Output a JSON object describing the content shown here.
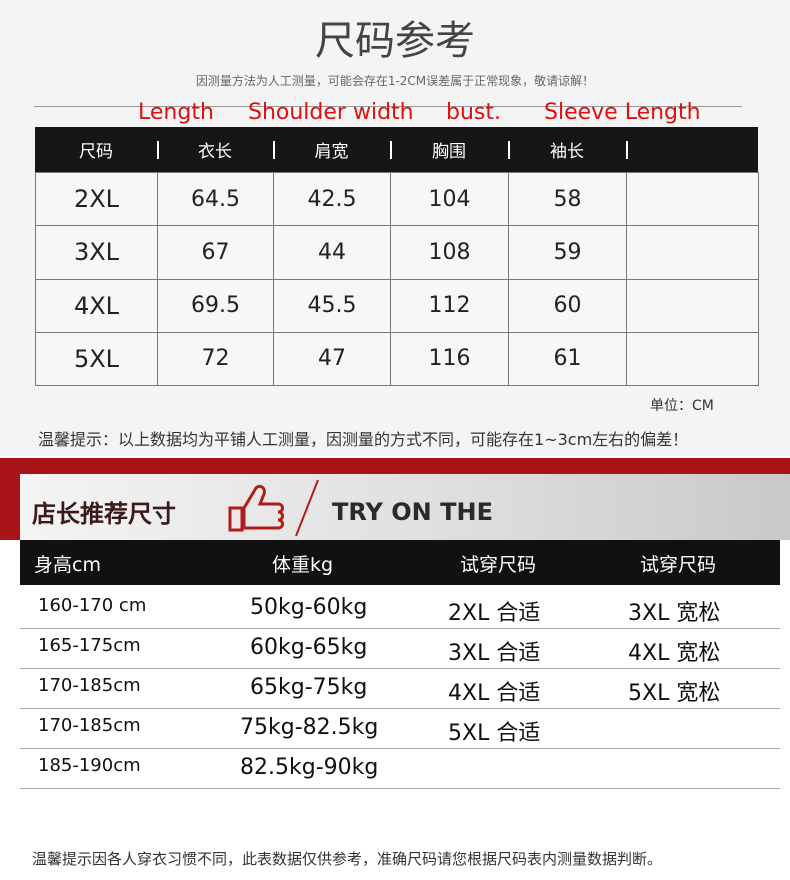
{
  "header": {
    "title": "尺码参考",
    "subtitle": "因测量方法为人工测量，可能会存在1-2CM误差属于正常现象，敬请谅解！"
  },
  "labels": [
    "Length",
    "Shoulder width",
    "bust.",
    "Sleeve Length"
  ],
  "size_table": {
    "columns": [
      "尺码",
      "衣长",
      "肩宽",
      "胸围",
      "袖长"
    ],
    "rows": [
      [
        "2XL",
        "64.5",
        "42.5",
        "104",
        "58"
      ],
      [
        "3XL",
        "67",
        "44",
        "108",
        "59"
      ],
      [
        "4XL",
        "69.5",
        "45.5",
        "112",
        "60"
      ],
      [
        "5XL",
        "72",
        "47",
        "116",
        "61"
      ]
    ],
    "unit": "单位：CM"
  },
  "note": "温馨提示：以上数据均为平铺人工测量，因测量的方式不同，可能存在1~3cm左右的偏差！",
  "recommend": {
    "title": "店长推荐尺寸",
    "subtitle": "TRY ON THE",
    "columns": [
      "身高cm",
      "体重kg",
      "试穿尺码",
      "试穿尺码"
    ],
    "rows": [
      [
        "160-170 cm",
        "50kg-60kg",
        "2XL 合适",
        "3XL 宽松"
      ],
      [
        "165-175cm",
        "60kg-65kg",
        "3XL 合适",
        "4XL 宽松"
      ],
      [
        "170-185cm",
        "65kg-75kg",
        "4XL 合适",
        "5XL 宽松"
      ],
      [
        "170-185cm",
        "75kg-82.5kg",
        "5XL 合适"
      ],
      [
        "185-190cm",
        "82.5kg-90kg"
      ]
    ],
    "note": "温馨提示因各人穿衣习惯不同，此表数据仅供参考，准确尺码请您根据尺码表内测量数据判断。"
  }
}
